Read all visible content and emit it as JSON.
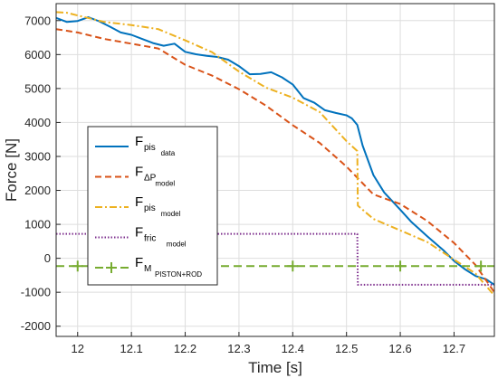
{
  "chart_data": {
    "type": "line",
    "xlabel": "Time [s]",
    "ylabel": "Force [N]",
    "xlim": [
      11.96,
      12.775
    ],
    "ylim": [
      -2300,
      7500
    ],
    "xticks": [
      "12",
      "12.1",
      "12.2",
      "12.3",
      "12.4",
      "12.5",
      "12.6",
      "12.7"
    ],
    "yticks": [
      "-2000",
      "-1000",
      "0",
      "1000",
      "2000",
      "3000",
      "4000",
      "5000",
      "6000",
      "7000"
    ],
    "grid": true,
    "legend_position": "center-left",
    "series": [
      {
        "legend_main": "F",
        "legend_sub": "pis",
        "legend_subsub": "data",
        "color": "#0072BD",
        "style": "solid",
        "x": [
          11.96,
          11.98,
          12.0,
          12.02,
          12.04,
          12.06,
          12.08,
          12.1,
          12.12,
          12.14,
          12.16,
          12.18,
          12.2,
          12.22,
          12.24,
          12.26,
          12.28,
          12.3,
          12.32,
          12.34,
          12.36,
          12.38,
          12.4,
          12.42,
          12.44,
          12.46,
          12.48,
          12.5,
          12.51,
          12.52,
          12.53,
          12.55,
          12.57,
          12.6,
          12.62,
          12.65,
          12.68,
          12.7,
          12.72,
          12.74,
          12.76,
          12.775
        ],
        "y": [
          7080,
          6960,
          6990,
          7100,
          6980,
          6820,
          6650,
          6580,
          6460,
          6340,
          6260,
          6320,
          6080,
          6010,
          5960,
          5930,
          5850,
          5660,
          5420,
          5430,
          5480,
          5330,
          5120,
          4720,
          4580,
          4360,
          4280,
          4210,
          4120,
          3930,
          3320,
          2450,
          1940,
          1430,
          1080,
          650,
          240,
          -80,
          -320,
          -520,
          -620,
          -780
        ]
      },
      {
        "legend_main": "F",
        "legend_sub": "ΔP",
        "legend_subsub": "model",
        "color": "#D95319",
        "style": "dashed",
        "x": [
          11.96,
          12.0,
          12.05,
          12.1,
          12.15,
          12.2,
          12.25,
          12.3,
          12.35,
          12.4,
          12.45,
          12.5,
          12.55,
          12.6,
          12.65,
          12.7,
          12.74,
          12.775
        ],
        "y": [
          6750,
          6650,
          6460,
          6320,
          6180,
          5700,
          5380,
          4980,
          4500,
          3920,
          3400,
          2700,
          1880,
          1600,
          1100,
          450,
          -200,
          -1000
        ]
      },
      {
        "legend_main": "F",
        "legend_sub": "pis",
        "legend_subsub": "model",
        "color": "#EDB120",
        "style": "dashdot",
        "x": [
          11.96,
          11.98,
          12.0,
          12.05,
          12.1,
          12.15,
          12.2,
          12.25,
          12.3,
          12.35,
          12.4,
          12.45,
          12.5,
          12.52,
          12.521,
          12.55,
          12.6,
          12.65,
          12.7,
          12.74,
          12.775
        ],
        "y": [
          7250,
          7230,
          7150,
          6960,
          6870,
          6750,
          6420,
          6070,
          5500,
          5030,
          4730,
          4310,
          3450,
          3160,
          1550,
          1160,
          820,
          480,
          -40,
          -450,
          -1100
        ]
      },
      {
        "legend_main": "F",
        "legend_sub": "fric",
        "legend_subsub": "model",
        "color": "#7E2F8E",
        "style": "dotted",
        "x": [
          11.96,
          12.52,
          12.521,
          12.775
        ],
        "y": [
          720,
          720,
          -780,
          -780
        ]
      },
      {
        "legend_main": "F",
        "legend_sub": "M",
        "legend_subsub": "PISTON+ROD",
        "color": "#77AC30",
        "style": "dashed-plus",
        "x": [
          11.96,
          12.775
        ],
        "y": [
          -230,
          -230
        ],
        "marker_x": [
          12.0,
          12.1,
          12.4,
          12.6,
          12.75
        ]
      }
    ]
  }
}
